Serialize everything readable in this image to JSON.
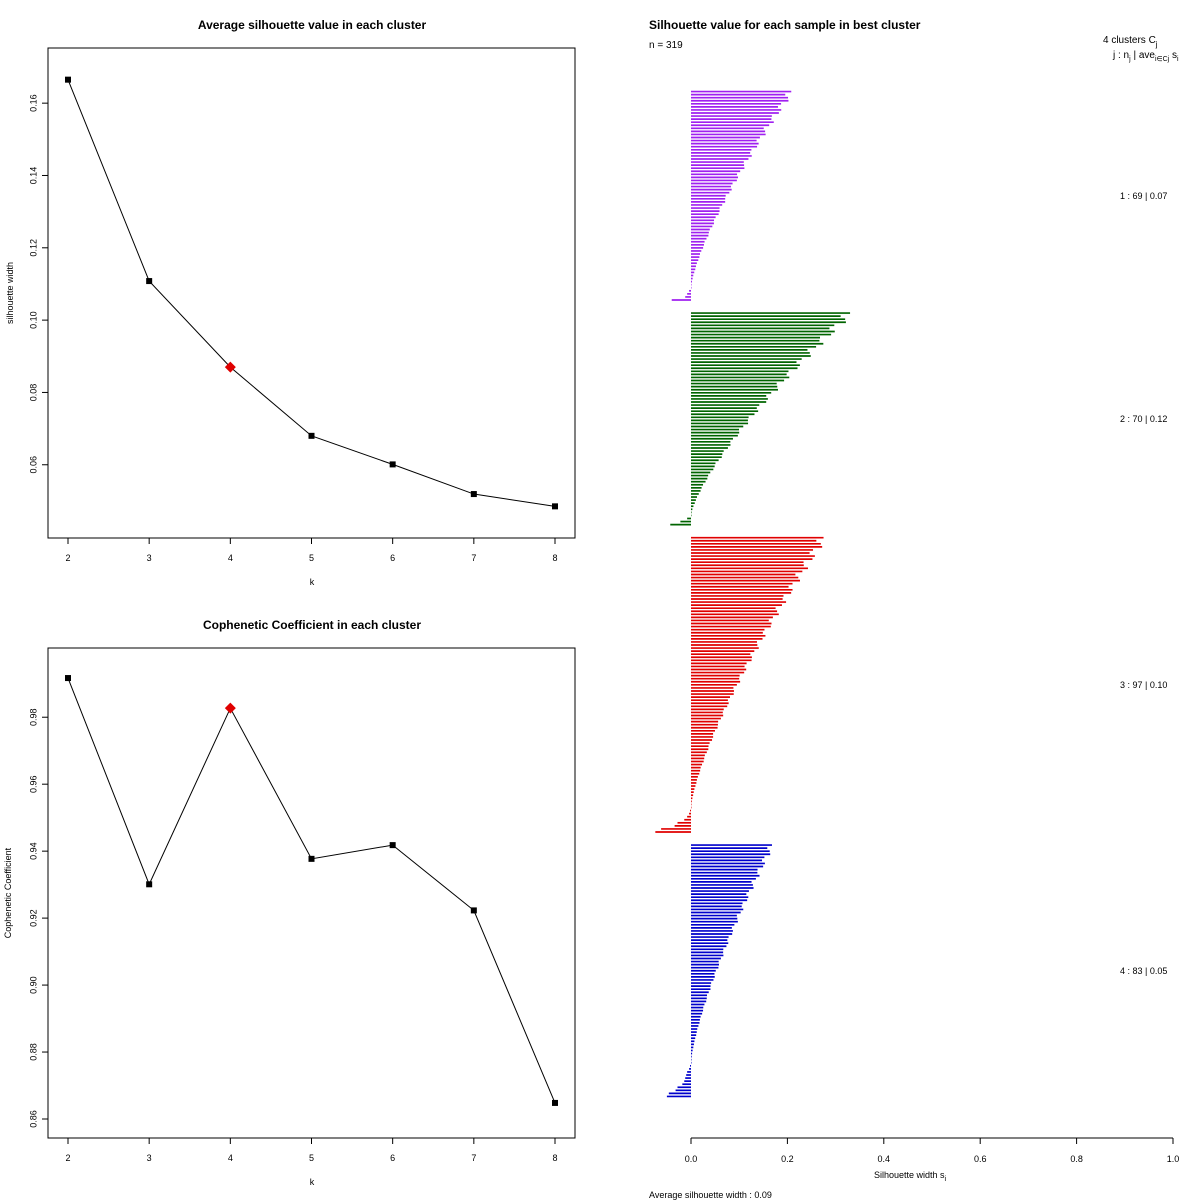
{
  "chart_data": [
    {
      "type": "line",
      "title": "Average silhouette value in each cluster",
      "xlabel": "k",
      "ylabel": "silhouette width",
      "x": [
        2,
        3,
        4,
        5,
        6,
        7,
        8
      ],
      "values": [
        0.1665,
        0.1108,
        0.087,
        0.068,
        0.0601,
        0.0519,
        0.0485
      ],
      "best_k": 4,
      "xlim": [
        2,
        8
      ],
      "ylim": [
        0.045,
        0.17
      ],
      "x_ticks": [
        "2",
        "3",
        "4",
        "5",
        "6",
        "7",
        "8"
      ],
      "y_ticks": [
        "0.06",
        "0.08",
        "0.10",
        "0.12",
        "0.14",
        "0.16"
      ],
      "y_tick_values": [
        0.06,
        0.08,
        0.1,
        0.12,
        0.14,
        0.16
      ],
      "point_color": "#000000",
      "best_color": "#e00000"
    },
    {
      "type": "line",
      "title": "Cophenetic Coefficient in each cluster",
      "xlabel": "k",
      "ylabel": "Cophenetic Coefficient",
      "x": [
        2,
        3,
        4,
        5,
        6,
        7,
        8
      ],
      "values": [
        0.9917,
        0.9301,
        0.9827,
        0.9377,
        0.9418,
        0.9223,
        0.8648
      ],
      "best_k": 4,
      "xlim": [
        2,
        8
      ],
      "ylim": [
        0.86,
        0.995
      ],
      "x_ticks": [
        "2",
        "3",
        "4",
        "5",
        "6",
        "7",
        "8"
      ],
      "y_ticks": [
        "0.86",
        "0.88",
        "0.90",
        "0.92",
        "0.94",
        "0.96",
        "0.98"
      ],
      "y_tick_values": [
        0.86,
        0.88,
        0.9,
        0.92,
        0.94,
        0.96,
        0.98
      ],
      "point_color": "#000000",
      "best_color": "#e00000"
    },
    {
      "type": "bar",
      "orientation": "horizontal",
      "title": "Silhouette value for each sample in best cluster",
      "n_label": "n = 319",
      "xlabel": "Silhouette width s",
      "xlabel_sub": "i",
      "xlim": [
        -0.05,
        1.0
      ],
      "x_ticks": [
        "0.0",
        "0.2",
        "0.4",
        "0.6",
        "0.8",
        "1.0"
      ],
      "x_tick_values": [
        0.0,
        0.2,
        0.4,
        0.6,
        0.8,
        1.0
      ],
      "legend_header": "4  clusters  C",
      "legend_header_sub": "j",
      "legend_line2": "j :  n",
      "legend_line2_sub": "j",
      "legend_line2_rest": " | ave",
      "legend_line2_sub2": "i∈Cj",
      "legend_line2_end": " s",
      "legend_line2_end_sub": "i",
      "average_label": "Average silhouette width :  0.09",
      "clusters": [
        {
          "label": "1 :  69  |  0.07",
          "n": 69,
          "color": "#a020f0",
          "max": 0.208,
          "neg": [
            -0.004,
            -0.008,
            -0.012,
            -0.04
          ]
        },
        {
          "label": "2 :  70  |  0.12",
          "n": 70,
          "color": "#006400",
          "max": 0.33,
          "neg": [
            -0.008,
            -0.022,
            -0.043
          ]
        },
        {
          "label": "3 :  97  |  0.10",
          "n": 97,
          "color": "#e00000",
          "max": 0.275,
          "neg": [
            -0.002,
            -0.004,
            -0.008,
            -0.014,
            -0.028,
            -0.034,
            -0.062,
            -0.074
          ]
        },
        {
          "label": "4 :  83  |  0.05",
          "n": 83,
          "color": "#0000cc",
          "max": 0.168,
          "neg": [
            -0.002,
            -0.004,
            -0.008,
            -0.01,
            -0.012,
            -0.014,
            -0.018,
            -0.028,
            -0.032,
            -0.046,
            -0.05
          ]
        }
      ]
    }
  ]
}
